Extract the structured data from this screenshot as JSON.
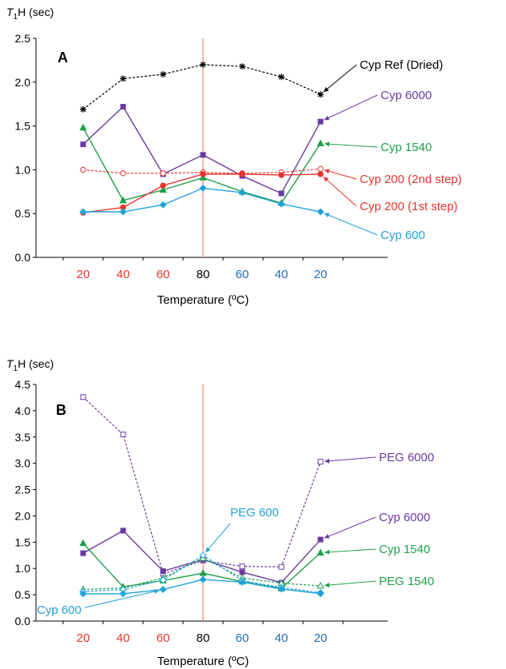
{
  "chart_data": [
    {
      "type": "line",
      "panel_letter": "A",
      "ylabel_italic": "T",
      "ylabel_sub": "1",
      "ylabel_rest": "H (sec)",
      "xlabel": "Temperature (ºC)",
      "ylim": [
        0.0,
        2.5
      ],
      "yticks": [
        "0.0",
        "0.5",
        "1.0",
        "1.5",
        "2.0",
        "2.5"
      ],
      "categories": [
        "20",
        "40",
        "60",
        "80",
        "60",
        "40",
        "20"
      ],
      "category_colors": [
        "#e8322e",
        "#e8322e",
        "#e8322e",
        "#000000",
        "#1f6eb5",
        "#1f6eb5",
        "#1f6eb5"
      ],
      "grid": false,
      "series": [
        {
          "name": "Cyp Ref (Dried)",
          "color": "#000000",
          "dashed": true,
          "marker": "star",
          "values": [
            1.69,
            2.04,
            2.09,
            2.2,
            2.18,
            2.06,
            1.86
          ]
        },
        {
          "name": "Cyp 6000",
          "color": "#6a3aa0",
          "dashed": false,
          "marker": "square",
          "values": [
            1.29,
            1.72,
            0.95,
            1.17,
            0.93,
            0.73,
            1.55
          ]
        },
        {
          "name": "Cyp 1540",
          "color": "#1f9f4a",
          "dashed": false,
          "marker": "triangle",
          "values": [
            1.48,
            0.65,
            0.77,
            0.91,
            0.75,
            0.62,
            1.3
          ]
        },
        {
          "name": "Cyp 200 (2nd step)",
          "color": "#e8322e",
          "dashed": true,
          "marker": "circle-open",
          "values": [
            1.0,
            0.96,
            0.96,
            0.97,
            0.96,
            0.97,
            1.01
          ]
        },
        {
          "name": "Cyp 200 (1st step)",
          "color": "#e8322e",
          "dashed": false,
          "marker": "circle",
          "values": [
            0.51,
            0.57,
            0.82,
            0.95,
            0.95,
            0.94,
            0.95
          ]
        },
        {
          "name": "Cyp 600",
          "color": "#1fa2d9",
          "dashed": false,
          "marker": "diamond",
          "values": [
            0.52,
            0.52,
            0.6,
            0.79,
            0.74,
            0.61,
            0.52
          ]
        }
      ]
    },
    {
      "type": "line",
      "panel_letter": "B",
      "ylabel_italic": "T",
      "ylabel_sub": "1",
      "ylabel_rest": "H (sec)",
      "xlabel": "Temperature (ºC)",
      "ylim": [
        0.0,
        4.5
      ],
      "yticks": [
        "0.0",
        "0.5",
        "1.0",
        "1.5",
        "2.0",
        "2.5",
        "3.0",
        "3.5",
        "4.0",
        "4.5"
      ],
      "categories": [
        "20",
        "40",
        "60",
        "80",
        "60",
        "40",
        "20"
      ],
      "category_colors": [
        "#e8322e",
        "#e8322e",
        "#e8322e",
        "#000000",
        "#1f6eb5",
        "#1f6eb5",
        "#1f6eb5"
      ],
      "grid": false,
      "series": [
        {
          "name": "PEG 6000",
          "color": "#6a3aa0",
          "dashed": true,
          "marker": "square-open",
          "values": [
            4.26,
            3.55,
            0.9,
            1.15,
            1.04,
            1.03,
            3.03
          ]
        },
        {
          "name": "Cyp 6000",
          "color": "#6a3aa0",
          "dashed": false,
          "marker": "square",
          "values": [
            1.29,
            1.72,
            0.95,
            1.17,
            0.93,
            0.73,
            1.55
          ]
        },
        {
          "name": "Cyp 1540",
          "color": "#1f9f4a",
          "dashed": false,
          "marker": "triangle",
          "values": [
            1.48,
            0.65,
            0.77,
            0.91,
            0.75,
            0.62,
            1.3
          ]
        },
        {
          "name": "PEG 1540",
          "color": "#1f9f4a",
          "dashed": true,
          "marker": "triangle-open",
          "values": [
            0.6,
            0.63,
            0.82,
            1.2,
            0.82,
            0.72,
            0.67
          ]
        },
        {
          "name": "PEG 600",
          "color": "#1fa2d9",
          "dashed": true,
          "marker": "diamond-open",
          "values": [
            0.56,
            0.6,
            0.78,
            1.25,
            0.77,
            0.64,
            0.54
          ]
        },
        {
          "name": "Cyp 600",
          "color": "#1fa2d9",
          "dashed": false,
          "marker": "diamond",
          "values": [
            0.52,
            0.52,
            0.6,
            0.79,
            0.74,
            0.61,
            0.52
          ]
        }
      ]
    }
  ]
}
